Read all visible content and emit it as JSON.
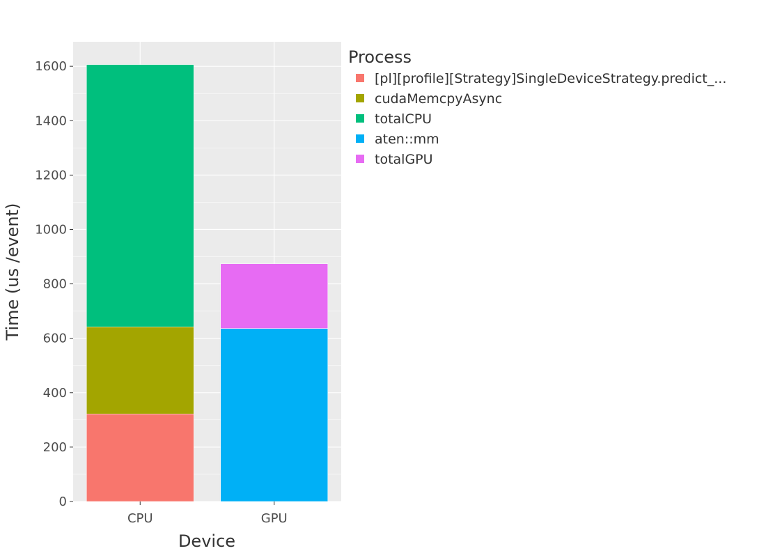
{
  "chart_data": {
    "type": "bar",
    "stacked": true,
    "title": "",
    "xlabel": "Device",
    "ylabel": "Time (us /event)",
    "categories": [
      "CPU",
      "GPU"
    ],
    "ylim": [
      0,
      1690
    ],
    "yticks": [
      0,
      200,
      400,
      600,
      800,
      1000,
      1200,
      1400,
      1600
    ],
    "grid": true,
    "legend": {
      "title": "Process",
      "position": "right"
    },
    "series": [
      {
        "name": "[pl][profile][Strategy]SingleDeviceStrategy.predict_...",
        "color": "#F8766D",
        "values": [
          322,
          null
        ]
      },
      {
        "name": "cudaMemcpyAsync",
        "color": "#A3A500",
        "values": [
          320,
          null
        ]
      },
      {
        "name": "totalCPU",
        "color": "#00BF7D",
        "values": [
          964,
          null
        ]
      },
      {
        "name": "aten::mm",
        "color": "#00B0F6",
        "values": [
          null,
          636
        ]
      },
      {
        "name": "totalGPU",
        "color": "#E76BF3",
        "values": [
          null,
          238
        ]
      }
    ]
  },
  "style": {
    "plot_background": "#EBEBEB",
    "grid_color": "#FFFFFF",
    "text_color": "#4d4d4d",
    "title_color": "#333333"
  }
}
